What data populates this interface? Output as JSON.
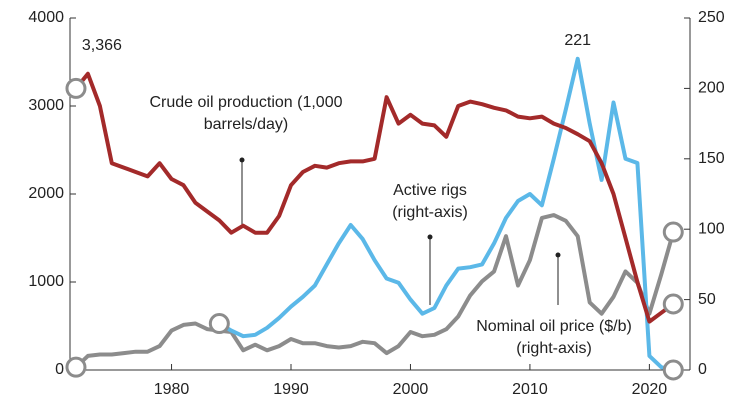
{
  "chart_data": {
    "type": "line",
    "x": [
      1972,
      1973,
      1974,
      1975,
      1976,
      1977,
      1978,
      1979,
      1980,
      1981,
      1982,
      1983,
      1984,
      1985,
      1986,
      1987,
      1988,
      1989,
      1990,
      1991,
      1992,
      1993,
      1994,
      1995,
      1996,
      1997,
      1998,
      1999,
      2000,
      2001,
      2002,
      2003,
      2004,
      2005,
      2006,
      2007,
      2008,
      2009,
      2010,
      2011,
      2012,
      2013,
      2014,
      2015,
      2016,
      2017,
      2018,
      2019,
      2020,
      2021,
      2022
    ],
    "xlim": [
      1971.5,
      2023.4
    ],
    "xticks": [
      1980,
      1990,
      2000,
      2010,
      2020
    ],
    "ylim": [
      0,
      4000
    ],
    "yticks": [
      0,
      1000,
      2000,
      3000,
      4000
    ],
    "y2lim": [
      0,
      250
    ],
    "y2ticks": [
      0,
      50,
      100,
      150,
      200,
      250
    ],
    "series": [
      {
        "name": "Crude oil production (1,000 barrels/day)",
        "color": "#a32a2a",
        "values": [
          3200,
          3366,
          3000,
          2350,
          2300,
          2250,
          2200,
          2350,
          2170,
          2100,
          1900,
          1800,
          1700,
          1560,
          1640,
          1560,
          1560,
          1750,
          2100,
          2250,
          2320,
          2300,
          2350,
          2370,
          2370,
          2400,
          3100,
          2800,
          2900,
          2800,
          2780,
          2650,
          3000,
          3050,
          3020,
          2980,
          2950,
          2880,
          2860,
          2880,
          2800,
          2750,
          2680,
          2600,
          2350,
          2000,
          1500,
          1000,
          550,
          650,
          750
        ],
        "value_labels": [
          null,
          "3,366",
          null,
          null,
          null,
          null,
          null,
          null,
          null,
          null,
          null,
          null,
          null,
          null,
          null,
          null,
          null,
          null,
          null,
          null,
          null,
          null,
          null,
          null,
          null,
          null,
          null,
          null,
          null,
          null,
          null,
          null,
          null,
          null,
          null,
          null,
          null,
          null,
          null,
          null,
          null,
          null,
          null,
          null,
          null,
          null,
          null,
          null,
          null,
          null,
          null
        ]
      },
      {
        "name": "Active rigs (right-axis)",
        "color": "#5bb8e8",
        "axis": "y2",
        "values": [
          null,
          null,
          null,
          null,
          null,
          null,
          null,
          null,
          null,
          null,
          null,
          null,
          33,
          28,
          24,
          25,
          30,
          37,
          45,
          52,
          60,
          75,
          90,
          103,
          93,
          78,
          65,
          62,
          50,
          40,
          44,
          60,
          72,
          73,
          75,
          90,
          108,
          120,
          125,
          117,
          150,
          185,
          221,
          175,
          135,
          190,
          150,
          147,
          10,
          2,
          0
        ]
      },
      {
        "name": "Nominal oil price ($/b) (right-axis)",
        "color": "#8c8c8c",
        "axis": "y2",
        "values": [
          2,
          10,
          11,
          11,
          12,
          13,
          13,
          17,
          28,
          32,
          33,
          29,
          28,
          27,
          14,
          18,
          14,
          17,
          22,
          19,
          19,
          17,
          16,
          17,
          20,
          19,
          12,
          17,
          27,
          24,
          25,
          29,
          38,
          53,
          63,
          70,
          95,
          60,
          78,
          108,
          110,
          106,
          95,
          48,
          40,
          52,
          70,
          62,
          40,
          68,
          98
        ]
      }
    ]
  }
}
